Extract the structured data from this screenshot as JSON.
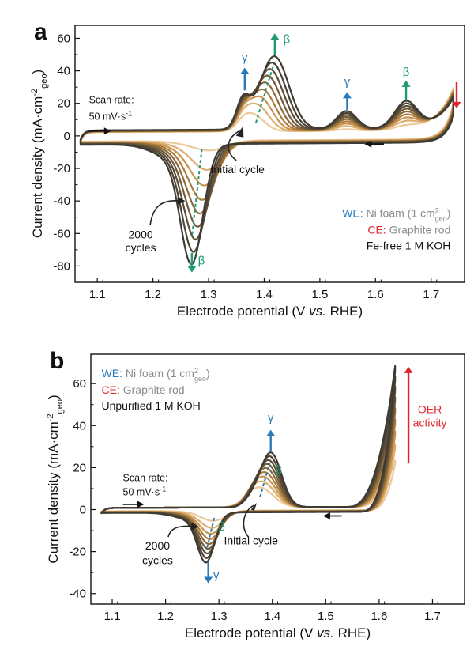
{
  "colors": {
    "cycles": [
      "#ecc89a",
      "#dcae70",
      "#c99451",
      "#ac7c3d",
      "#8e6a39",
      "#6f5a39",
      "#5a4c35",
      "#4a4336",
      "#3f3b33"
    ],
    "blue": "#2a7ab8",
    "green": "#1e9a75",
    "red": "#e0252b",
    "gray": "#8a8a8a"
  },
  "common": {
    "xlabel_parts": [
      "Electrode potential (V ",
      "vs.",
      " RHE)"
    ],
    "ylabel_parts": [
      "Current density (mA·cm",
      "-2",
      "geo",
      ")"
    ],
    "scan_rate_label": "Scan rate:",
    "scan_rate_value": "50 mV·s",
    "scan_rate_exp": "-1",
    "initial_cycle": "Initial cycle",
    "cycles_2000_l1": "2000",
    "cycles_2000_l2": "cycles",
    "gamma": "γ",
    "beta": "β",
    "we_prefix": "WE:",
    "we_text": "Ni foam (1 cm",
    "we_sup": "2",
    "we_sub": "geo",
    "we_close": ")",
    "ce_prefix": "CE:",
    "ce_text": "Graphite rod"
  },
  "panel_a": {
    "letter": "a",
    "electrolyte": "Fe-free 1 M KOH"
  },
  "panel_b": {
    "letter": "b",
    "electrolyte": "Unpurified 1 M KOH",
    "oer_l1": "OER",
    "oer_l2": "activity"
  },
  "chart_data": [
    {
      "type": "line",
      "panel": "a",
      "xlabel": "Electrode potential (V vs. RHE)",
      "ylabel": "Current density (mA·cm-2geo)",
      "xlim": [
        1.06,
        1.76
      ],
      "ylim": [
        -90,
        68
      ],
      "xticks": [
        1.1,
        1.2,
        1.3,
        1.4,
        1.5,
        1.6,
        1.7
      ],
      "yticks": [
        -80,
        -60,
        -40,
        -20,
        0,
        20,
        40,
        60
      ],
      "x_range": [
        1.07,
        1.74
      ],
      "n_curves": 9,
      "series_trend": {
        "anodic_peak": {
          "x_start": 1.38,
          "x_end": 1.418,
          "y_start": 11,
          "y_end": 47
        },
        "cathodic_peak": {
          "x_start": 1.305,
          "x_end": 1.27,
          "y_start": -5,
          "y_end": -70
        },
        "end_current": {
          "x": 1.74,
          "y_start": 27,
          "y_end": 20
        },
        "shoulder_1.36": {
          "y_start": 3,
          "y_end": 20
        },
        "peak_1.55": {
          "y_start": 1,
          "y_end": 12
        },
        "peak_1.655": {
          "y_start": 2,
          "y_end": 18
        }
      },
      "grid": false
    },
    {
      "type": "line",
      "panel": "b",
      "xlabel": "Electrode potential (V vs. RHE)",
      "ylabel": "Current density (mA·cm-2geo)",
      "xlim": [
        1.06,
        1.76
      ],
      "ylim": [
        -45,
        74
      ],
      "xticks": [
        1.1,
        1.2,
        1.3,
        1.4,
        1.5,
        1.6,
        1.7
      ],
      "yticks": [
        -40,
        -20,
        0,
        20,
        40,
        60
      ],
      "x_range": [
        1.08,
        1.63
      ],
      "n_curves": 9,
      "series_trend": {
        "anodic_peak": {
          "x_start": 1.378,
          "x_end": 1.397,
          "y_start": 9,
          "y_end": 27
        },
        "cathodic_peak": {
          "x_start": 1.29,
          "x_end": 1.276,
          "y_start": -5,
          "y_end": -23
        },
        "end_current_1.63": {
          "y_start": 22,
          "y_end": 67
        }
      },
      "grid": false
    }
  ]
}
